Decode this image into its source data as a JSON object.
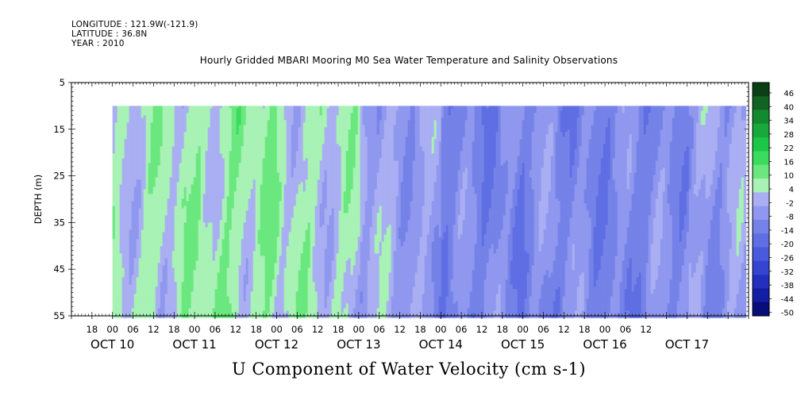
{
  "header": {
    "longitude": "LONGITUDE : 121.9W(-121.9)",
    "latitude": "LATITUDE : 36.8N",
    "year": "YEAR : 2010"
  },
  "chart_data": {
    "type": "heatmap",
    "title": "Hourly Gridded MBARI Mooring M0 Sea Water Temperature and Salinity Observations",
    "xlabel": "U Component of Water Velocity (cm s-1)",
    "ylabel": "DEPTH (m)",
    "ylim": [
      55,
      5
    ],
    "y_ticks": [
      5,
      15,
      25,
      35,
      45,
      55
    ],
    "data_depth_range": [
      10,
      55
    ],
    "x_range_hours": [
      "Oct 9 12:00",
      "Oct 17 18:00"
    ],
    "data_time_range": [
      "Oct 10 00:00",
      "Oct 17 17:00"
    ],
    "x_hour_ticks": [
      "18",
      "00",
      "06",
      "12",
      "18",
      "00",
      "06",
      "12",
      "18",
      "00",
      "06",
      "12",
      "18",
      "00",
      "06",
      "12",
      "18",
      "00",
      "06",
      "12",
      "18",
      "00",
      "06",
      "12",
      "18",
      "00",
      "06",
      "12"
    ],
    "x_day_labels": [
      "OCT 10",
      "OCT 11",
      "OCT 12",
      "OCT 13",
      "OCT 14",
      "OCT 15",
      "OCT 16",
      "OCT 17"
    ],
    "colorbar_levels": [
      "46",
      "40",
      "34",
      "28",
      "22",
      "16",
      "10",
      "4",
      "-2",
      "-8",
      "-14",
      "-20",
      "-26",
      "-32",
      "-38",
      "-44",
      "-50"
    ],
    "colorbar_colors": [
      "#0b3f16",
      "#106323",
      "#148a30",
      "#18a83b",
      "#1cc747",
      "#3bdc5e",
      "#6ae87f",
      "#a7f2b4",
      "#a9aff2",
      "#8f98ee",
      "#7582e8",
      "#5f6ee3",
      "#4a5adc",
      "#3645d0",
      "#2430bd",
      "#141ea2",
      "#080d7a"
    ],
    "day_mean_u": [
      {
        "day": "Oct 10",
        "u": 4
      },
      {
        "day": "Oct 11",
        "u": 8
      },
      {
        "day": "Oct 12",
        "u": 6
      },
      {
        "day": "Oct 13",
        "u": 0
      },
      {
        "day": "Oct 14",
        "u": -10
      },
      {
        "day": "Oct 15",
        "u": -8
      },
      {
        "day": "Oct 16",
        "u": -10
      },
      {
        "day": "Oct 17",
        "u": -4
      }
    ]
  }
}
